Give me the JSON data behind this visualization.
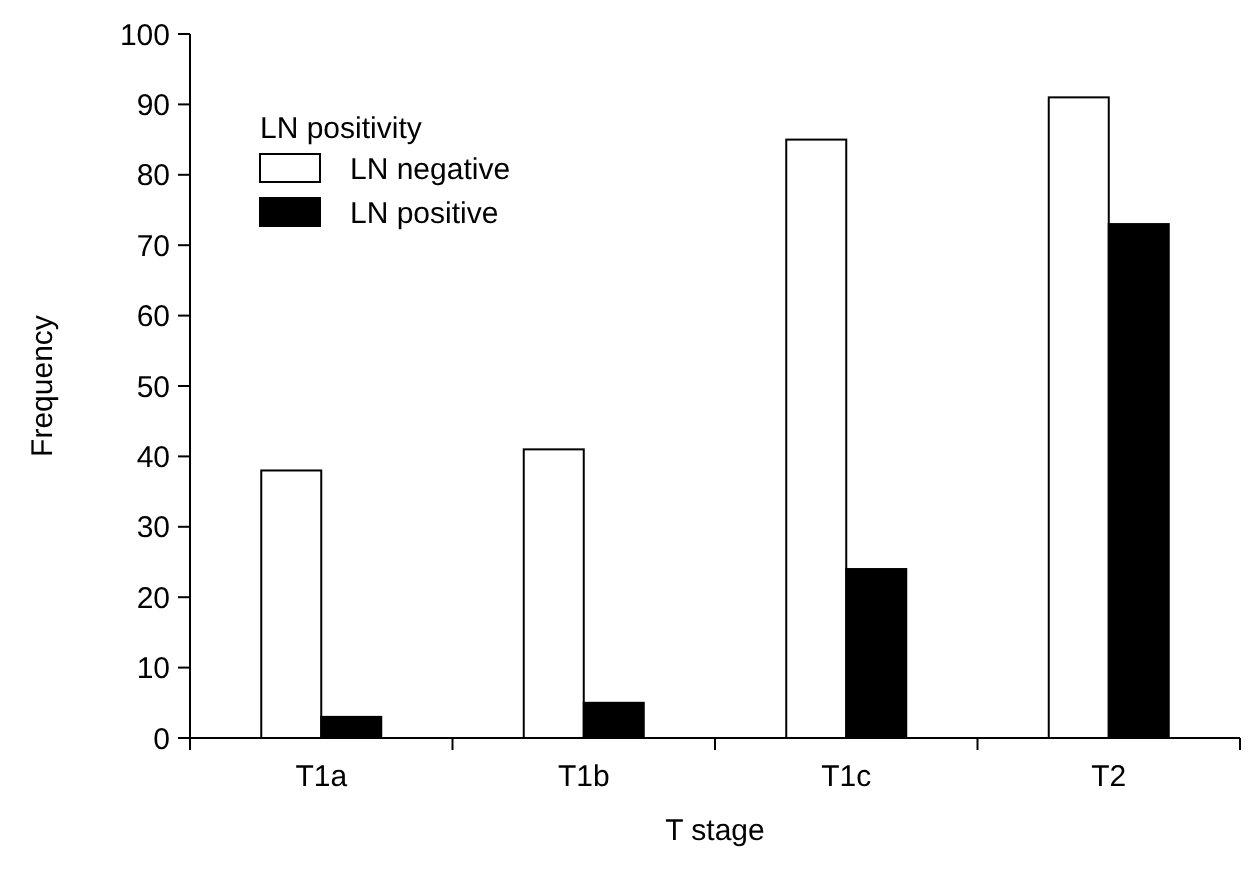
{
  "chart_data": {
    "type": "bar",
    "xlabel": "T stage",
    "ylabel": "Frequency",
    "legend_title": "LN positivity",
    "categories": [
      "T1a",
      "T1b",
      "T1c",
      "T2"
    ],
    "series": [
      {
        "name": "LN negative",
        "color": "#ffffff",
        "values": [
          38,
          41,
          85,
          91
        ]
      },
      {
        "name": "LN positive",
        "color": "#000000",
        "values": [
          3,
          5,
          24,
          73
        ]
      }
    ],
    "ylim": [
      0,
      100
    ],
    "yticks": [
      0,
      10,
      20,
      30,
      40,
      50,
      60,
      70,
      80,
      90,
      100
    ],
    "legend": "top left",
    "grid": false
  }
}
